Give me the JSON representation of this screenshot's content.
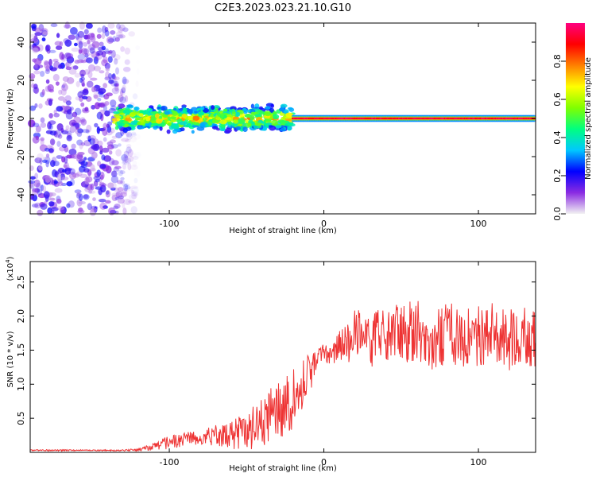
{
  "title": "C2E3.2023.023.21.10.G10",
  "chart_data": [
    {
      "type": "heatmap",
      "xlabel": "Height of straight line (km)",
      "ylabel": "Frequency (Hz)",
      "xlim": [
        -190,
        137
      ],
      "ylim": [
        -50,
        50
      ],
      "xticks": [
        -100,
        0,
        100
      ],
      "yticks": [
        -40,
        -20,
        0,
        20,
        40
      ],
      "colorbar": {
        "label": "Normalized spectral amplitude",
        "range": [
          0,
          1
        ],
        "ticks": [
          "0.0",
          "0.2",
          "0.4",
          "0.6",
          "0.8"
        ],
        "colors": [
          "#f2f2f2",
          "#8a2be2",
          "#0000ff",
          "#00c8ff",
          "#00ff80",
          "#80ff00",
          "#ffff00",
          "#ff8000",
          "#ff0000",
          "#ff0080"
        ]
      },
      "structure": [
        {
          "region": "scattered noise",
          "x": [
            -190,
            -120
          ],
          "freq": [
            -50,
            50
          ],
          "amplitude": 0.2
        },
        {
          "region": "broad band",
          "x": [
            -135,
            -20
          ],
          "freq_center": 0,
          "freq_halfwidth": 6,
          "amplitude": 0.5
        },
        {
          "region": "narrow line",
          "x": [
            -20,
            137
          ],
          "freq_center": 0,
          "freq_halfwidth": 1.5,
          "amplitude": 0.9
        }
      ]
    },
    {
      "type": "line",
      "xlabel": "Height of straight line (km)",
      "ylabel": "SNR (10 * v/v)",
      "y_multiplier": "(x10",
      "y_multiplier_exp": "4",
      "y_multiplier_close": ")",
      "xlim": [
        -190,
        137
      ],
      "ylim": [
        0,
        2.8
      ],
      "xticks": [
        -100,
        0,
        100
      ],
      "yticks": [
        0.5,
        1.0,
        1.5,
        2.0,
        2.5
      ],
      "yticklabels": [
        "0.5",
        "1.0",
        "1.5",
        "2.0",
        "2.5"
      ],
      "color": "#ee3333",
      "x": [
        -190,
        -170,
        -150,
        -130,
        -120,
        -110,
        -100,
        -90,
        -80,
        -70,
        -60,
        -50,
        -40,
        -30,
        -20,
        -15,
        -10,
        -5,
        0,
        5,
        10,
        15,
        20,
        30,
        40,
        50,
        60,
        70,
        80,
        90,
        100,
        110,
        120,
        130,
        137
      ],
      "values": [
        0.03,
        0.03,
        0.03,
        0.03,
        0.04,
        0.08,
        0.15,
        0.2,
        0.22,
        0.25,
        0.25,
        0.3,
        0.45,
        0.6,
        0.8,
        0.9,
        1.1,
        1.3,
        1.45,
        1.4,
        1.55,
        1.6,
        1.75,
        1.65,
        1.7,
        1.75,
        1.8,
        1.65,
        1.75,
        1.7,
        1.7,
        1.75,
        1.65,
        1.7,
        1.6
      ],
      "noise_amplitude": [
        0.01,
        0.01,
        0.01,
        0.01,
        0.02,
        0.06,
        0.1,
        0.12,
        0.12,
        0.15,
        0.2,
        0.3,
        0.35,
        0.45,
        0.45,
        0.4,
        0.35,
        0.2,
        0.15,
        0.15,
        0.25,
        0.3,
        0.35,
        0.4,
        0.45,
        0.45,
        0.45,
        0.45,
        0.45,
        0.45,
        0.45,
        0.45,
        0.45,
        0.45,
        0.45
      ]
    }
  ]
}
